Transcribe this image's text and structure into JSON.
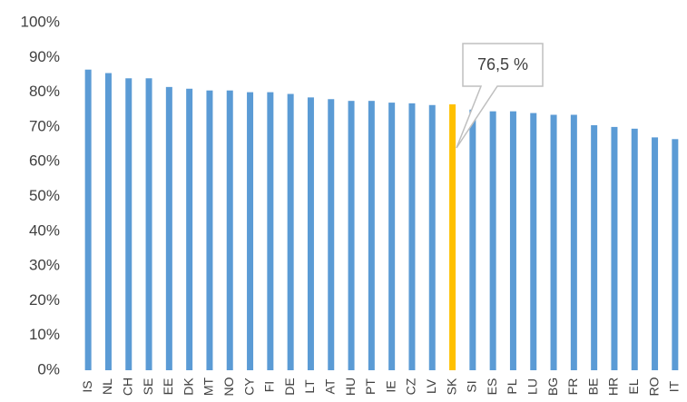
{
  "chart_data": {
    "type": "bar",
    "categories": [
      "IS",
      "NL",
      "CH",
      "SE",
      "EE",
      "DK",
      "MT",
      "NO",
      "CY",
      "FI",
      "DE",
      "LT",
      "AT",
      "HU",
      "PT",
      "IE",
      "CZ",
      "LV",
      "SK",
      "SI",
      "ES",
      "PL",
      "LU",
      "BG",
      "FR",
      "BE",
      "HR",
      "EL",
      "RO",
      "IT"
    ],
    "values": [
      86.5,
      85.5,
      84,
      84,
      81.5,
      81,
      80.5,
      80.5,
      80,
      80,
      79.5,
      78.5,
      78,
      77.5,
      77.5,
      77,
      76.8,
      76.3,
      76.5,
      75,
      74.5,
      74.5,
      74,
      73.5,
      73.5,
      70.5,
      70,
      69.5,
      67,
      66.5
    ],
    "colors": [
      "#5b9bd5",
      "#5b9bd5",
      "#5b9bd5",
      "#5b9bd5",
      "#5b9bd5",
      "#5b9bd5",
      "#5b9bd5",
      "#5b9bd5",
      "#5b9bd5",
      "#5b9bd5",
      "#5b9bd5",
      "#5b9bd5",
      "#5b9bd5",
      "#5b9bd5",
      "#5b9bd5",
      "#5b9bd5",
      "#5b9bd5",
      "#5b9bd5",
      "#ffc000",
      "#5b9bd5",
      "#5b9bd5",
      "#5b9bd5",
      "#5b9bd5",
      "#5b9bd5",
      "#5b9bd5",
      "#5b9bd5",
      "#5b9bd5",
      "#5b9bd5",
      "#5b9bd5",
      "#5b9bd5"
    ],
    "annotation": "76,5 %",
    "ylim": [
      0,
      100
    ],
    "yticks": [
      {
        "value": 0,
        "label": "0%"
      },
      {
        "value": 10,
        "label": "10%"
      },
      {
        "value": 20,
        "label": "20%"
      },
      {
        "value": 30,
        "label": "30%"
      },
      {
        "value": 40,
        "label": "40%"
      },
      {
        "value": 50,
        "label": "50%"
      },
      {
        "value": 60,
        "label": "60%"
      },
      {
        "value": 70,
        "label": "70%"
      },
      {
        "value": 80,
        "label": "80%"
      },
      {
        "value": 90,
        "label": "90%"
      },
      {
        "value": 100,
        "label": "100%"
      }
    ],
    "grid": false
  }
}
